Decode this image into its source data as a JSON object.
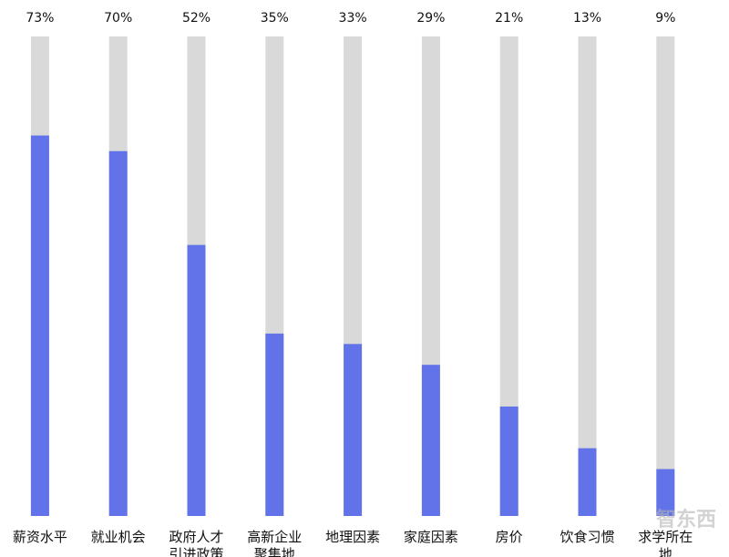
{
  "chart_data": {
    "type": "bar",
    "categories": [
      "薪资水平",
      "就业机会",
      "政府人才引进政策",
      "高新企业聚集地",
      "地理因素",
      "家庭因素",
      "房价",
      "饮食习惯",
      "求学所在地"
    ],
    "values": [
      73,
      70,
      52,
      35,
      33,
      29,
      21,
      13,
      9
    ],
    "value_labels": [
      "73%",
      "70%",
      "52%",
      "35%",
      "33%",
      "29%",
      "21%",
      "13%",
      "9%"
    ],
    "color": "#6273e9",
    "track_color": "#d9d9d9",
    "ylim": [
      0,
      92
    ],
    "watermark": "智东西"
  }
}
